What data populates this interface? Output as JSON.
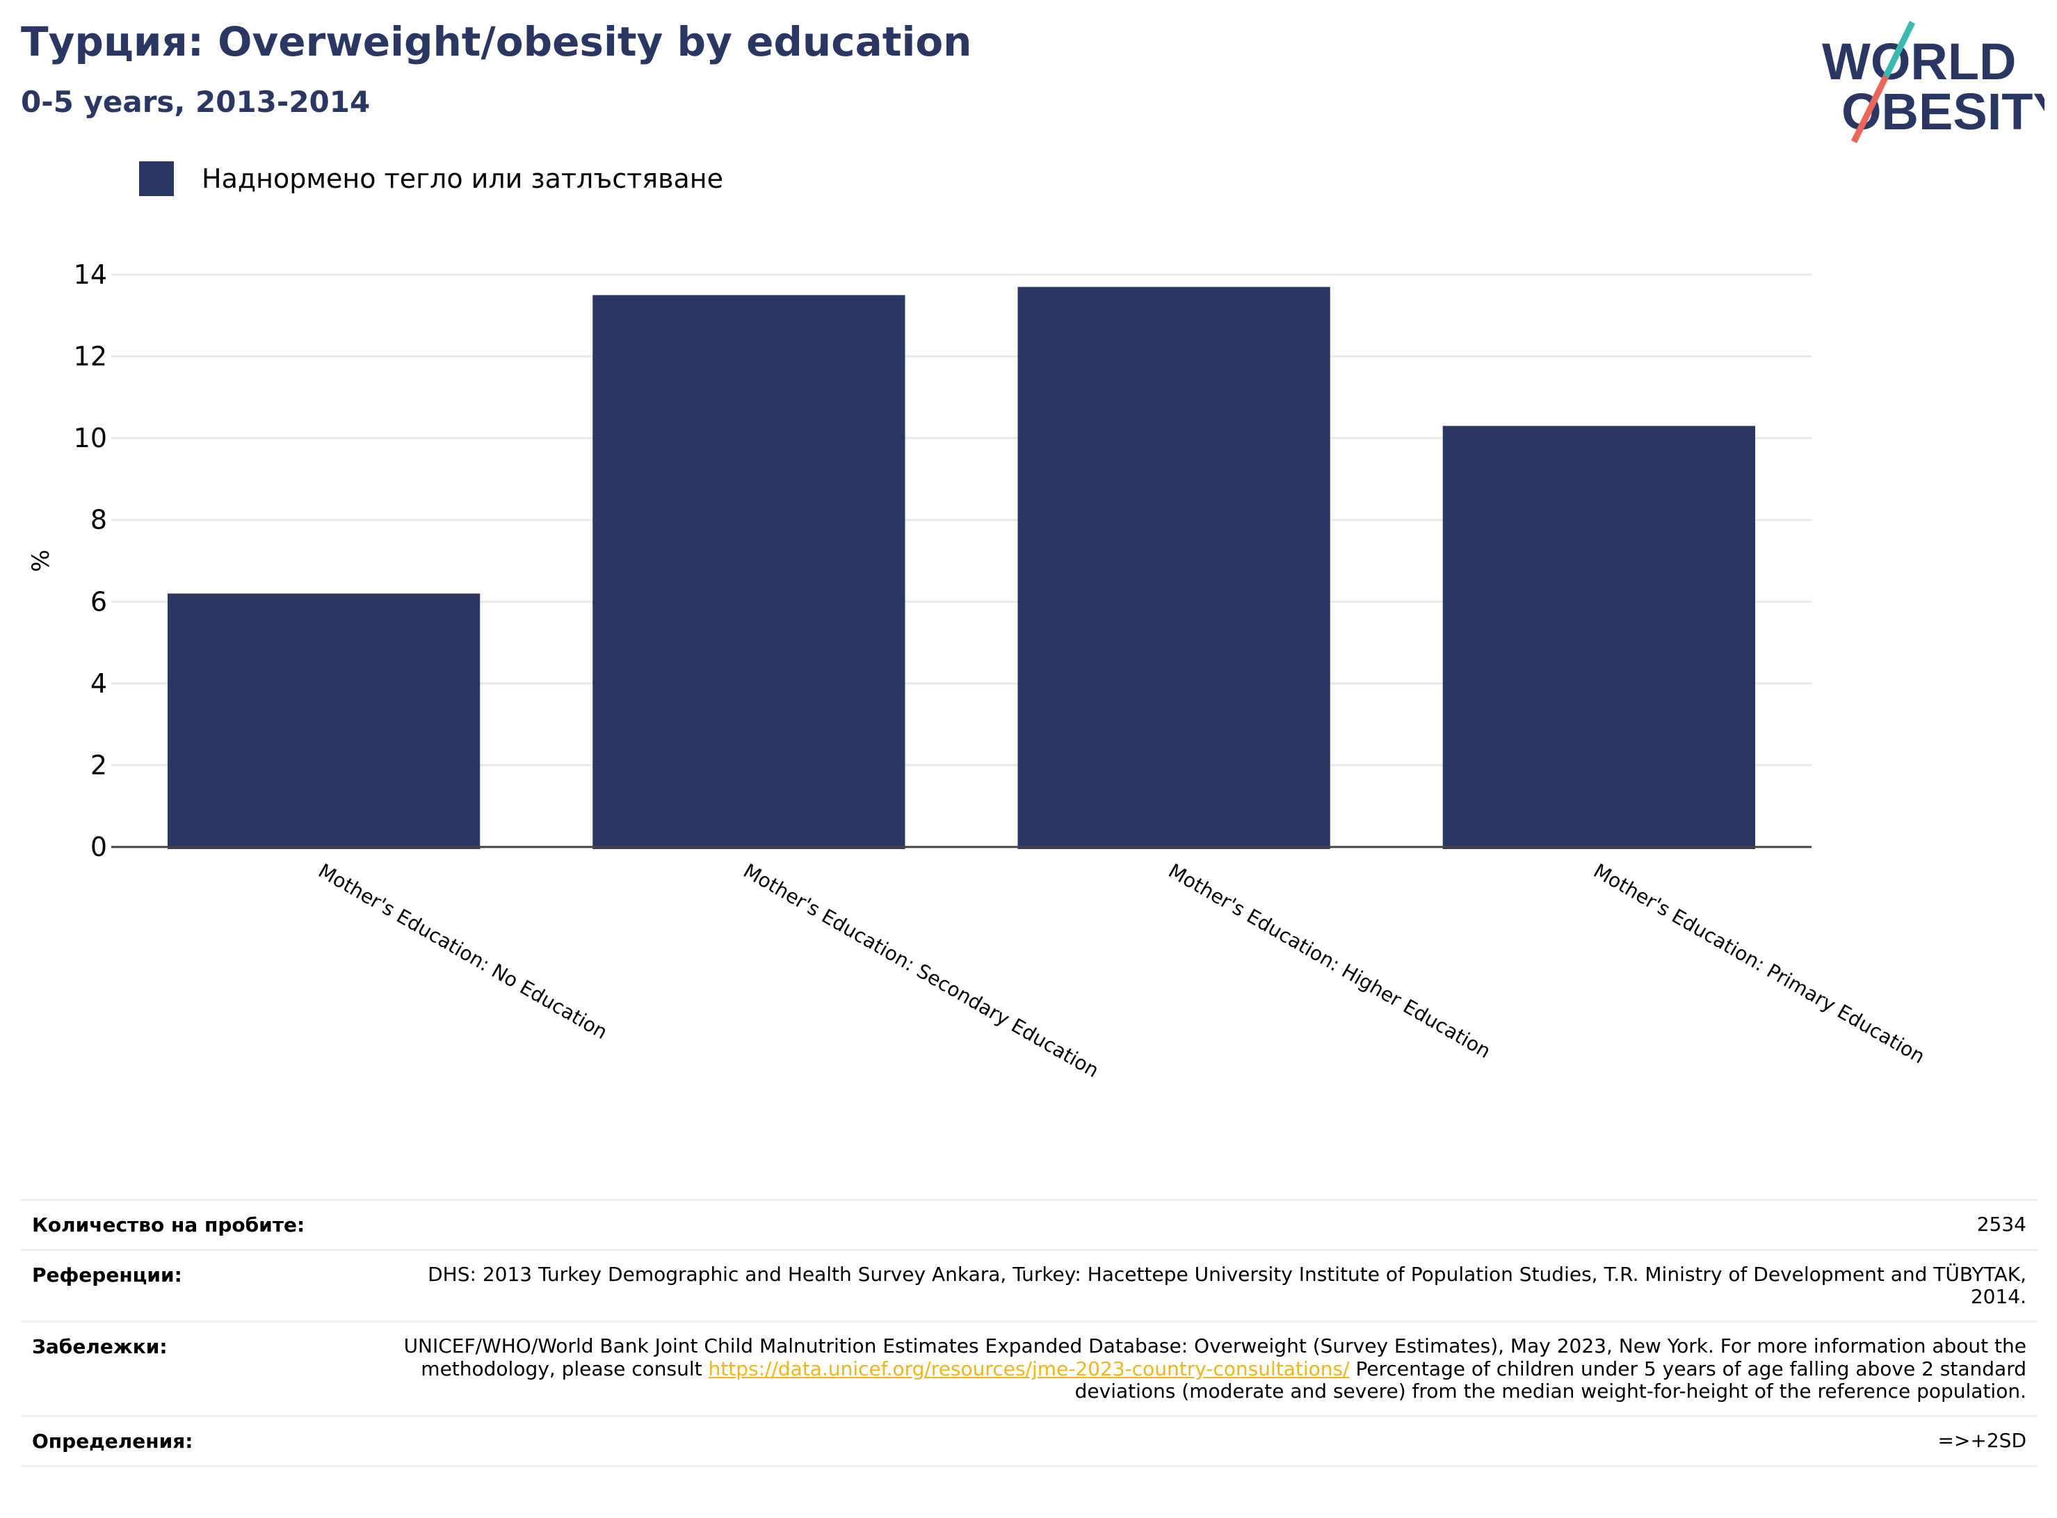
{
  "header": {
    "title": "Турция: Overweight/obesity by education",
    "subtitle": "0-5 years, 2013-2014"
  },
  "logo": {
    "line1": "WORLD",
    "line2": "OBESITY",
    "colors": {
      "text": "#2b3763",
      "slash_teal": "#3bb8b0",
      "slash_coral": "#e8675a"
    }
  },
  "chart_data": {
    "type": "bar",
    "ylabel": "%",
    "xlabel": "",
    "ylim": [
      0,
      14
    ],
    "yticks": [
      0,
      2,
      4,
      6,
      8,
      10,
      12,
      14
    ],
    "categories": [
      "Mother's Education: No Education",
      "Mother's Education: Secondary Education",
      "Mother's Education: Higher Education",
      "Mother's Education: Primary Education"
    ],
    "series": [
      {
        "name": "Наднормено тегло или затлъстяване",
        "color": "#2b3763",
        "values": [
          6.2,
          13.5,
          13.7,
          10.3
        ]
      }
    ],
    "grid": true,
    "legend_position": "top-left"
  },
  "info": {
    "sample_label": "Количество на пробите:",
    "sample_value": "2534",
    "references_label": "Референции:",
    "references_value": "DHS: 2013 Turkey Demographic and Health Survey Ankara, Turkey: Hacettepe University Institute of Population Studies, T.R. Ministry of Development and TÜBYTAK, 2014.",
    "notes_label": "Забележки:",
    "notes_before_link": "UNICEF/WHO/World Bank Joint Child Malnutrition Estimates Expanded Database: Overweight (Survey Estimates), May 2023, New York. For more information about the methodology, please consult ",
    "notes_link": "https://data.unicef.org/resources/jme-2023-country-consultations/",
    "notes_after_link": " Percentage of children under 5 years of age falling above 2 standard deviations (moderate and severe) from the median weight-for-height of the reference population.",
    "definitions_label": "Определения:",
    "definitions_value": "=>+2SD"
  }
}
